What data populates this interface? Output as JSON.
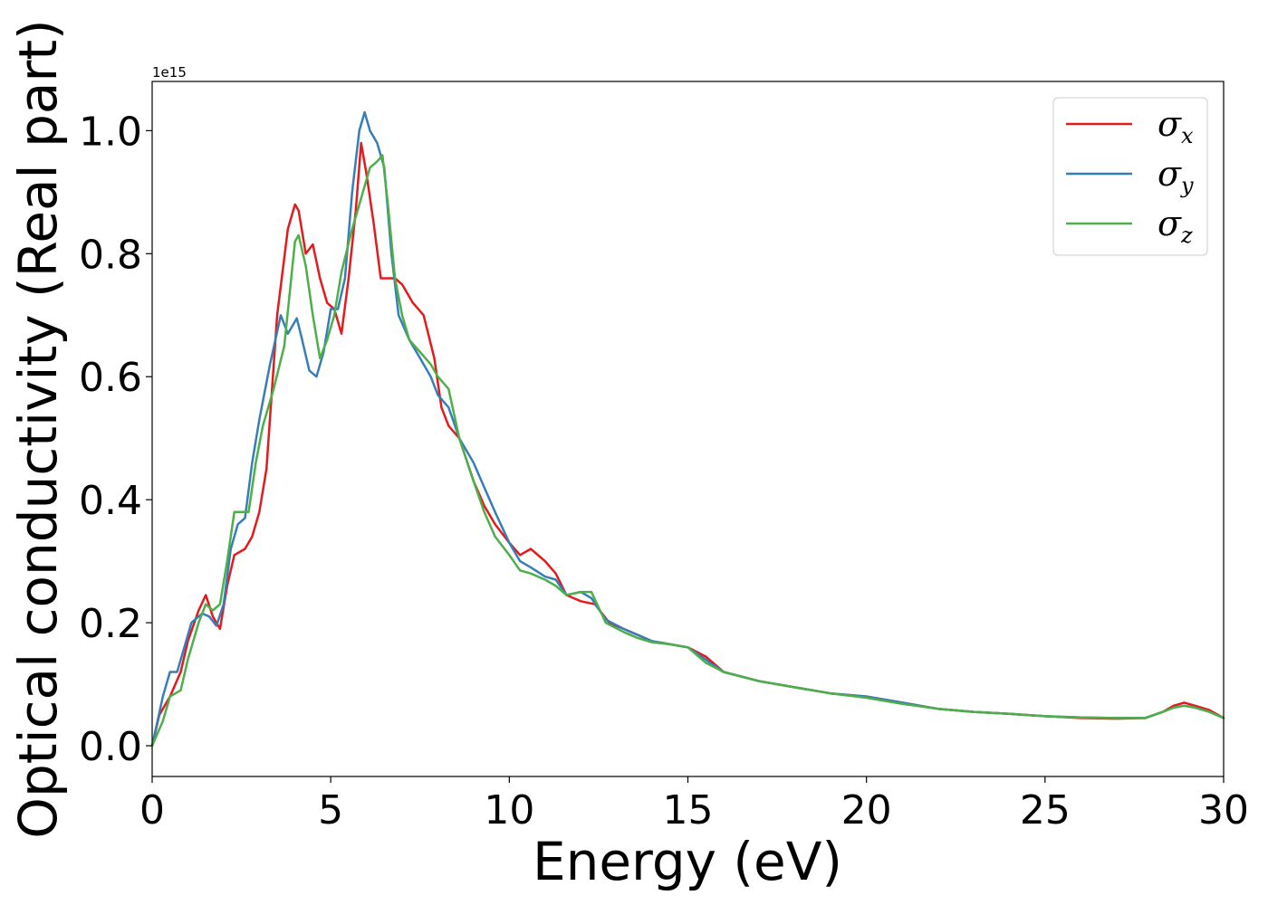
{
  "chart_data": {
    "type": "line",
    "xlabel": "Energy (eV)",
    "ylabel": "Optical conductivity (Real part)",
    "y_offset_text": "1e15",
    "xlim": [
      0,
      30
    ],
    "ylim": [
      -0.05,
      1.08
    ],
    "x_ticks": [
      0,
      5,
      10,
      15,
      20,
      25,
      30
    ],
    "x_tick_labels": [
      "0",
      "5",
      "10",
      "15",
      "20",
      "25",
      "30"
    ],
    "y_ticks": [
      0.0,
      0.2,
      0.4,
      0.6,
      0.8,
      1.0
    ],
    "y_tick_labels": [
      "0.0",
      "0.2",
      "0.4",
      "0.6",
      "0.8",
      "1.0"
    ],
    "grid": false,
    "legend_position": "top-right",
    "series": [
      {
        "name": "σx",
        "symbol": "σ",
        "subscript": "x",
        "color": "#e41a1c",
        "x": [
          0,
          0.2,
          0.5,
          0.8,
          1.0,
          1.3,
          1.5,
          1.7,
          1.9,
          2.1,
          2.3,
          2.6,
          2.8,
          3.0,
          3.2,
          3.5,
          3.8,
          4.0,
          4.1,
          4.3,
          4.5,
          4.7,
          4.9,
          5.1,
          5.3,
          5.5,
          5.7,
          5.85,
          6.0,
          6.2,
          6.4,
          6.6,
          6.8,
          7.0,
          7.3,
          7.6,
          7.9,
          8.1,
          8.3,
          8.6,
          9.0,
          9.3,
          9.6,
          10.0,
          10.3,
          10.6,
          11.0,
          11.3,
          11.6,
          12.0,
          12.4,
          12.8,
          13.2,
          13.6,
          14.0,
          14.5,
          15.0,
          15.5,
          16.0,
          17.0,
          18.0,
          19.0,
          20.0,
          21.0,
          22.0,
          23.0,
          24.0,
          25.0,
          26.0,
          27.0,
          27.8,
          28.3,
          28.6,
          28.9,
          29.2,
          29.6,
          30.0
        ],
        "y": [
          0.0,
          0.05,
          0.08,
          0.12,
          0.17,
          0.22,
          0.245,
          0.21,
          0.19,
          0.26,
          0.31,
          0.32,
          0.34,
          0.38,
          0.45,
          0.7,
          0.84,
          0.88,
          0.87,
          0.8,
          0.815,
          0.76,
          0.72,
          0.71,
          0.67,
          0.76,
          0.87,
          0.98,
          0.93,
          0.85,
          0.76,
          0.76,
          0.76,
          0.75,
          0.72,
          0.7,
          0.63,
          0.55,
          0.52,
          0.5,
          0.43,
          0.39,
          0.36,
          0.33,
          0.31,
          0.32,
          0.3,
          0.28,
          0.245,
          0.235,
          0.23,
          0.2,
          0.19,
          0.18,
          0.17,
          0.165,
          0.16,
          0.145,
          0.12,
          0.105,
          0.095,
          0.085,
          0.08,
          0.07,
          0.06,
          0.055,
          0.052,
          0.048,
          0.045,
          0.044,
          0.045,
          0.055,
          0.065,
          0.07,
          0.065,
          0.058,
          0.045
        ]
      },
      {
        "name": "σy",
        "symbol": "σ",
        "subscript": "y",
        "color": "#377eb8",
        "x": [
          0,
          0.3,
          0.5,
          0.7,
          0.9,
          1.1,
          1.4,
          1.6,
          1.8,
          2.0,
          2.2,
          2.4,
          2.6,
          2.8,
          3.0,
          3.3,
          3.6,
          3.8,
          4.05,
          4.2,
          4.4,
          4.6,
          4.8,
          5.0,
          5.2,
          5.4,
          5.6,
          5.8,
          5.95,
          6.1,
          6.3,
          6.5,
          6.7,
          6.9,
          7.2,
          7.5,
          7.8,
          8.0,
          8.3,
          8.6,
          9.0,
          9.3,
          9.6,
          10.0,
          10.3,
          10.6,
          11.0,
          11.3,
          11.6,
          12.0,
          12.3,
          12.7,
          13.2,
          13.6,
          14.0,
          14.5,
          15.0,
          15.5,
          16.0,
          17.0,
          18.0,
          19.0,
          20.0,
          21.0,
          22.0,
          23.0,
          24.0,
          25.0,
          26.0,
          27.0,
          27.8,
          28.3,
          28.6,
          28.9,
          29.2,
          29.6,
          30.0
        ],
        "y": [
          0.0,
          0.08,
          0.12,
          0.12,
          0.16,
          0.2,
          0.215,
          0.21,
          0.195,
          0.23,
          0.32,
          0.36,
          0.37,
          0.46,
          0.53,
          0.62,
          0.7,
          0.67,
          0.695,
          0.66,
          0.61,
          0.6,
          0.64,
          0.71,
          0.71,
          0.76,
          0.9,
          1.0,
          1.03,
          1.0,
          0.98,
          0.94,
          0.8,
          0.7,
          0.66,
          0.63,
          0.6,
          0.57,
          0.55,
          0.5,
          0.46,
          0.42,
          0.38,
          0.33,
          0.3,
          0.29,
          0.275,
          0.27,
          0.245,
          0.25,
          0.24,
          0.205,
          0.19,
          0.18,
          0.17,
          0.165,
          0.16,
          0.14,
          0.12,
          0.105,
          0.095,
          0.085,
          0.08,
          0.07,
          0.06,
          0.055,
          0.052,
          0.048,
          0.046,
          0.045,
          0.045,
          0.055,
          0.062,
          0.065,
          0.062,
          0.055,
          0.045
        ]
      },
      {
        "name": "σz",
        "symbol": "σ",
        "subscript": "z",
        "color": "#4daf4a",
        "x": [
          0,
          0.3,
          0.5,
          0.8,
          1.0,
          1.3,
          1.5,
          1.7,
          1.9,
          2.1,
          2.3,
          2.5,
          2.7,
          2.9,
          3.1,
          3.4,
          3.7,
          4.0,
          4.1,
          4.3,
          4.5,
          4.7,
          4.9,
          5.1,
          5.3,
          5.6,
          5.9,
          6.1,
          6.3,
          6.45,
          6.6,
          6.8,
          7.0,
          7.2,
          7.5,
          7.8,
          8.0,
          8.3,
          8.6,
          9.0,
          9.3,
          9.6,
          10.0,
          10.3,
          10.6,
          11.0,
          11.3,
          11.6,
          12.0,
          12.3,
          12.7,
          13.2,
          13.6,
          14.0,
          14.5,
          15.0,
          15.5,
          16.0,
          17.0,
          18.0,
          19.0,
          20.0,
          21.0,
          22.0,
          23.0,
          24.0,
          25.0,
          26.0,
          27.0,
          27.8,
          28.3,
          28.6,
          28.9,
          29.2,
          29.6,
          30.0
        ],
        "y": [
          0.0,
          0.04,
          0.08,
          0.09,
          0.14,
          0.2,
          0.23,
          0.22,
          0.23,
          0.3,
          0.38,
          0.38,
          0.38,
          0.46,
          0.52,
          0.58,
          0.65,
          0.82,
          0.83,
          0.78,
          0.7,
          0.63,
          0.66,
          0.7,
          0.77,
          0.84,
          0.9,
          0.94,
          0.95,
          0.96,
          0.88,
          0.76,
          0.7,
          0.66,
          0.64,
          0.62,
          0.6,
          0.58,
          0.5,
          0.43,
          0.38,
          0.34,
          0.31,
          0.285,
          0.28,
          0.27,
          0.26,
          0.245,
          0.25,
          0.25,
          0.2,
          0.185,
          0.175,
          0.168,
          0.165,
          0.16,
          0.135,
          0.12,
          0.105,
          0.095,
          0.085,
          0.078,
          0.068,
          0.06,
          0.055,
          0.052,
          0.048,
          0.046,
          0.045,
          0.045,
          0.055,
          0.062,
          0.065,
          0.062,
          0.055,
          0.045
        ]
      }
    ]
  }
}
